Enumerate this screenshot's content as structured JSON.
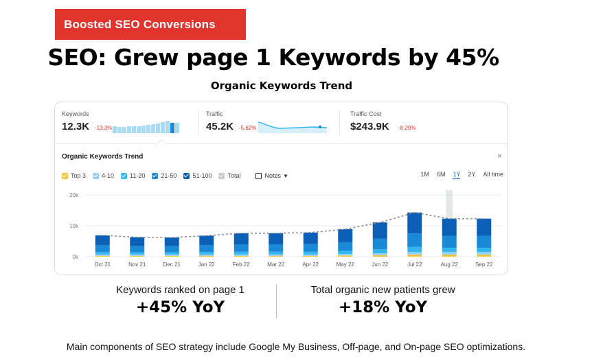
{
  "badge": "Boosted SEO Conversions",
  "headline": "SEO: Grew page 1 Keywords by 45%",
  "subheadline": "Organic Keywords Trend",
  "metrics": [
    {
      "label": "Keywords",
      "value": "12.3K",
      "change": "-13.3%"
    },
    {
      "label": "Traffic",
      "value": "45.2K",
      "change": "-5.62%"
    },
    {
      "label": "Traffic Cost",
      "value": "$243.9K",
      "change": "-8.29%"
    }
  ],
  "panel": {
    "title": "Organic Keywords Trend",
    "close": "×",
    "legend": [
      {
        "label": "Top 3",
        "color": "#f5c542"
      },
      {
        "label": "4-10",
        "color": "#8fd3f6"
      },
      {
        "label": "11-20",
        "color": "#34b6f0"
      },
      {
        "label": "21-50",
        "color": "#1a8ad8"
      },
      {
        "label": "51-100",
        "color": "#0b5fb6"
      },
      {
        "label": "Total",
        "color": "#c7c9cf"
      }
    ],
    "notes_label": "Notes",
    "ranges": [
      "1M",
      "6M",
      "1Y",
      "2Y",
      "All time"
    ],
    "active_range": "1Y"
  },
  "chart_data": {
    "type": "bar",
    "stacked": true,
    "categories": [
      "Oct 21",
      "Nov 21",
      "Dec 21",
      "Jan 22",
      "Feb 22",
      "Mar 22",
      "Apr 22",
      "May 22",
      "Jun 22",
      "Jul 22",
      "Aug 22",
      "Sep 22"
    ],
    "series": [
      {
        "name": "Top 3",
        "color": "#f5c542",
        "values": [
          300,
          300,
          300,
          300,
          300,
          300,
          300,
          400,
          500,
          700,
          700,
          700
        ]
      },
      {
        "name": "4-10",
        "color": "#8fd3f6",
        "values": [
          400,
          400,
          400,
          400,
          400,
          400,
          400,
          500,
          600,
          800,
          800,
          800
        ]
      },
      {
        "name": "11-20",
        "color": "#34b6f0",
        "values": [
          800,
          700,
          700,
          800,
          900,
          900,
          900,
          1000,
          1300,
          1700,
          1400,
          1400
        ]
      },
      {
        "name": "21-50",
        "color": "#1a8ad8",
        "values": [
          2200,
          2000,
          2000,
          2200,
          2400,
          2400,
          2500,
          2800,
          3400,
          4300,
          3800,
          3800
        ]
      },
      {
        "name": "51-100",
        "color": "#0b5fb6",
        "values": [
          3200,
          2900,
          2800,
          3100,
          3600,
          3600,
          3700,
          4200,
          5300,
          6800,
          5600,
          5600
        ]
      }
    ],
    "total_line": {
      "name": "Total",
      "values": [
        6900,
        6300,
        6200,
        6800,
        7600,
        7600,
        7800,
        8900,
        11100,
        14300,
        12300,
        12300
      ]
    },
    "ylim": [
      0,
      20000
    ],
    "yticks": [
      0,
      10000,
      20000
    ],
    "ytick_labels": [
      "0k",
      "10k",
      "20k"
    ],
    "highlighted_category": "Aug 22",
    "grid": true
  },
  "stats": [
    {
      "label": "Keywords ranked on page 1",
      "value": "+45% YoY"
    },
    {
      "label": "Total organic new patients grew",
      "value": "+18% YoY"
    }
  ],
  "footer": "Main components of SEO strategy include Google My Business, Off-page, and On-page SEO optimizations."
}
